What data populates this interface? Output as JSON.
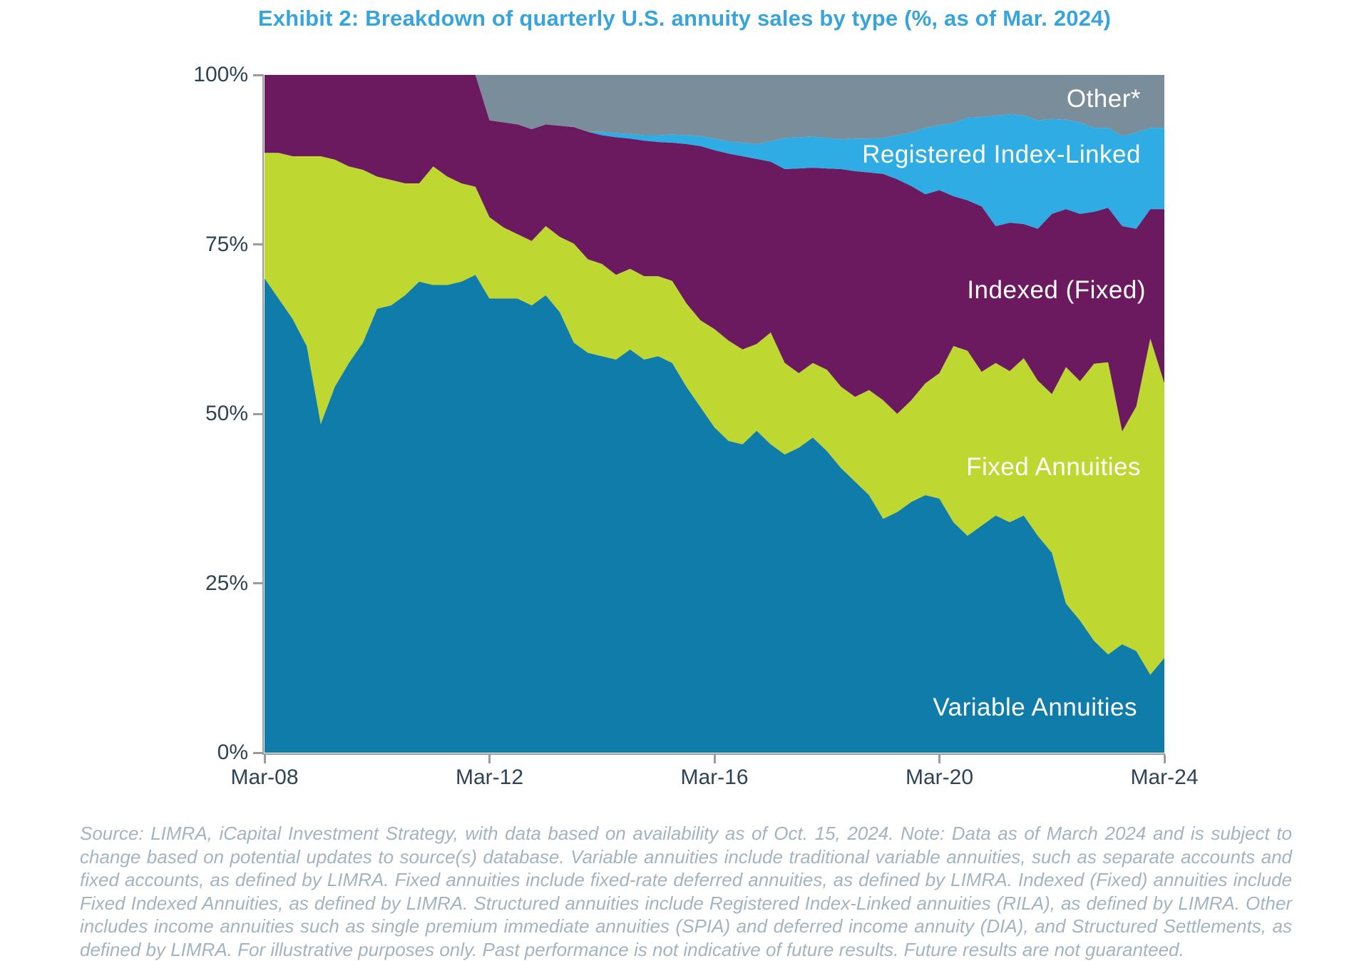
{
  "title": "Exhibit 2: Breakdown of quarterly U.S. annuity sales by type (%, as of Mar. 2024)",
  "footnote": "Source: LIMRA, iCapital Investment Strategy, with data based on availability as of Oct. 15, 2024. Note: Data as of March 2024 and is subject to change based on potential updates to source(s) database. Variable annuities include traditional variable annuities, such as separate accounts and fixed accounts, as defined by LIMRA. Fixed annuities include fixed-rate deferred annuities, as defined by LIMRA. Indexed (Fixed) annuities include Fixed Indexed Annuities, as defined by LIMRA. Structured annuities include Registered Index-Linked annuities (RILA), as defined by LIMRA. Other includes income annuities such as single premium immediate annuities (SPIA) and deferred income annuity (DIA), and Structured Settlements, as defined by LIMRA. For illustrative purposes only. Past performance is not indicative of future results. Future results are not guaranteed.",
  "colors": {
    "title_text": "#38A4DC",
    "axis_text": "#2E4356",
    "axis_line": "#9B9B9B",
    "footnote_text": "#A3B4C0",
    "variable_annuities": "#0F7CA9",
    "fixed_annuities": "#BFD731",
    "indexed_fixed": "#6B1A5F",
    "registered_index_linked": "#2FACE3",
    "other": "#7A8D9B"
  },
  "series_labels": {
    "other": "Other*",
    "rila": "Registered Index-Linked",
    "indexed": "Indexed (Fixed)",
    "fixed": "Fixed Annuities",
    "variable": "Variable Annuities"
  },
  "y_axis": {
    "ticks": [
      {
        "label": "100%",
        "value": 100
      },
      {
        "label": "75%",
        "value": 75
      },
      {
        "label": "50%",
        "value": 50
      },
      {
        "label": "25%",
        "value": 25
      },
      {
        "label": "0%",
        "value": 0
      }
    ]
  },
  "x_axis": {
    "ticks": [
      {
        "label": "Mar-08",
        "index": 0
      },
      {
        "label": "Mar-12",
        "index": 16
      },
      {
        "label": "Mar-16",
        "index": 32
      },
      {
        "label": "Mar-20",
        "index": 48
      },
      {
        "label": "Mar-24",
        "index": 64
      }
    ]
  },
  "chart_data": {
    "type": "area",
    "stacked": true,
    "unit": "percent of quarterly U.S. annuity sales",
    "ylim": [
      0,
      100
    ],
    "grid": false,
    "legend_position": "labels-inside-areas",
    "x": [
      "Mar-08",
      "Jun-08",
      "Sep-08",
      "Dec-08",
      "Mar-09",
      "Jun-09",
      "Sep-09",
      "Dec-09",
      "Mar-10",
      "Jun-10",
      "Sep-10",
      "Dec-10",
      "Mar-11",
      "Jun-11",
      "Sep-11",
      "Dec-11",
      "Mar-12",
      "Jun-12",
      "Sep-12",
      "Dec-12",
      "Mar-13",
      "Jun-13",
      "Sep-13",
      "Dec-13",
      "Mar-14",
      "Jun-14",
      "Sep-14",
      "Dec-14",
      "Mar-15",
      "Jun-15",
      "Sep-15",
      "Dec-15",
      "Mar-16",
      "Jun-16",
      "Sep-16",
      "Dec-16",
      "Mar-17",
      "Jun-17",
      "Sep-17",
      "Dec-17",
      "Mar-18",
      "Jun-18",
      "Sep-18",
      "Dec-18",
      "Mar-19",
      "Jun-19",
      "Sep-19",
      "Dec-19",
      "Mar-20",
      "Jun-20",
      "Sep-20",
      "Dec-20",
      "Mar-21",
      "Jun-21",
      "Sep-21",
      "Dec-21",
      "Mar-22",
      "Jun-22",
      "Sep-22",
      "Dec-22",
      "Mar-23",
      "Jun-23",
      "Sep-23",
      "Dec-23",
      "Mar-24"
    ],
    "series": [
      {
        "id": "variable",
        "name": "Variable Annuities",
        "color": "#0F7CA9",
        "values": [
          70,
          67,
          64,
          60,
          48.5,
          54,
          57.5,
          60.5,
          65.5,
          66,
          67.5,
          69.5,
          69,
          69,
          69.5,
          70.5,
          67,
          67,
          67,
          66,
          67.5,
          65,
          60.5,
          59,
          58.5,
          58,
          59.5,
          58,
          58.5,
          57.5,
          54,
          51,
          48,
          46,
          45.5,
          47.5,
          45.5,
          44,
          45,
          46.5,
          44.5,
          42,
          40,
          38,
          34.5,
          35.5,
          37,
          38,
          37.5,
          34,
          32,
          33.5,
          35,
          34,
          35,
          32,
          29.5,
          22,
          19.5,
          16.5,
          14.5,
          16,
          15,
          11.5,
          14
        ]
      },
      {
        "id": "fixed",
        "name": "Fixed Annuities",
        "color": "#BFD731",
        "values": [
          18.5,
          21.5,
          24,
          28,
          39.5,
          33.5,
          29,
          25.5,
          19.5,
          18.5,
          16.5,
          14.5,
          17.5,
          16,
          14.5,
          13,
          12,
          10.5,
          9.5,
          9.5,
          10.2,
          11.1,
          14.6,
          13.8,
          13.6,
          12.5,
          11.9,
          12.3,
          11.8,
          12.1,
          12.3,
          12.8,
          14.5,
          14.8,
          14,
          12.8,
          16.5,
          13.5,
          11,
          11,
          12,
          12,
          12.5,
          15.5,
          17.5,
          14.5,
          15,
          16.5,
          18.5,
          26,
          27.3,
          22.7,
          22.5,
          22.3,
          23.2,
          22.9,
          23.4,
          34.9,
          35.3,
          40.9,
          43.1,
          31.4,
          36.1,
          49.6,
          40.5
        ]
      },
      {
        "id": "indexed",
        "name": "Indexed (Fixed)",
        "color": "#6B1A5F",
        "values": [
          11.5,
          11.5,
          12,
          12,
          12,
          12.5,
          13.5,
          14,
          15,
          15.5,
          16,
          16,
          13.5,
          15,
          16,
          16.5,
          14.3,
          15.5,
          16.2,
          16.5,
          15,
          16.4,
          17.2,
          18.8,
          19,
          20.3,
          19.2,
          20,
          19.8,
          20.4,
          23.5,
          25.7,
          26.4,
          27.6,
          28.5,
          27.3,
          25.2,
          28.6,
          30.2,
          28.8,
          29.7,
          32.1,
          33.3,
          32.1,
          33.4,
          34.6,
          31.6,
          27.9,
          27,
          22.1,
          22.2,
          24.4,
          20.2,
          21.9,
          19.8,
          22.4,
          26.6,
          23.3,
          24.7,
          22.4,
          22.8,
          30.3,
          26.2,
          19.1,
          25.7
        ]
      },
      {
        "id": "rila",
        "name": "Registered Index-Linked",
        "color": "#2FACE3",
        "values": [
          0,
          0,
          0,
          0,
          0,
          0,
          0,
          0,
          0,
          0,
          0,
          0,
          0,
          0,
          0,
          0,
          0,
          0,
          0,
          0,
          0,
          0,
          0,
          0,
          0.5,
          0.6,
          0.7,
          0.8,
          1,
          1.2,
          1.3,
          1.5,
          1.7,
          1.8,
          2,
          2.2,
          3,
          4.6,
          4.6,
          4.6,
          4.5,
          4.4,
          4.8,
          5,
          5.3,
          6.5,
          7.9,
          9.8,
          9.6,
          10.8,
          12.2,
          13.2,
          16.3,
          16,
          16,
          16,
          14,
          13.2,
          13.5,
          12.4,
          11.8,
          13.3,
          14.2,
          12,
          12
        ]
      },
      {
        "id": "other",
        "name": "Other*",
        "color": "#7A8D9B",
        "values": [
          0,
          0,
          0,
          0,
          0,
          0,
          0,
          0,
          0,
          0,
          0,
          0,
          0,
          0,
          0,
          0,
          6.7,
          7,
          7.3,
          8,
          7.3,
          7.5,
          7.7,
          8.4,
          8.4,
          8.6,
          8.7,
          8.9,
          8.9,
          8.8,
          8.9,
          9,
          9.4,
          9.8,
          10,
          10.2,
          9.8,
          9.3,
          9.2,
          9.1,
          9.3,
          9.5,
          9.4,
          9.4,
          9.3,
          8.9,
          8.5,
          7.8,
          7.4,
          7.1,
          6.3,
          6.2,
          6,
          5.8,
          6,
          6.7,
          6.5,
          6.6,
          7,
          7.8,
          7.8,
          9,
          8.5,
          7.8,
          7.8
        ]
      }
    ]
  }
}
